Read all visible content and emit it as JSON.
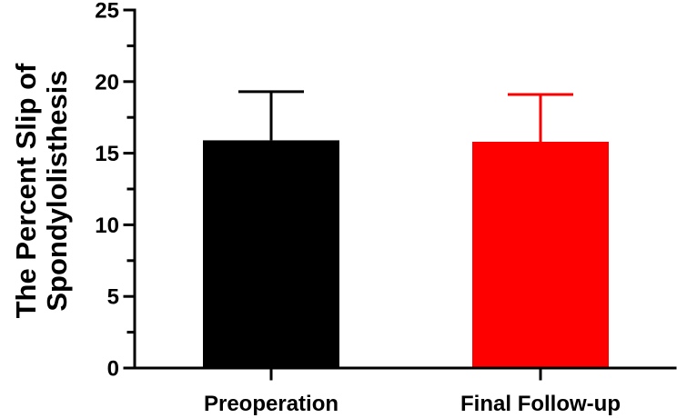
{
  "chart_data": {
    "type": "bar",
    "title": "",
    "xlabel": "",
    "ylabel_lines": [
      "The Percent Slip of",
      "Spondylolisthesis"
    ],
    "categories": [
      "Preoperation",
      "Final Follow-up"
    ],
    "values": [
      15.9,
      15.8
    ],
    "error_upper": [
      3.4,
      3.3
    ],
    "colors": [
      "#000000",
      "#ff0000"
    ],
    "ylim": [
      0,
      25
    ],
    "yticks": [
      0,
      5,
      10,
      15,
      20,
      25
    ],
    "grid": false,
    "legend": "none"
  }
}
